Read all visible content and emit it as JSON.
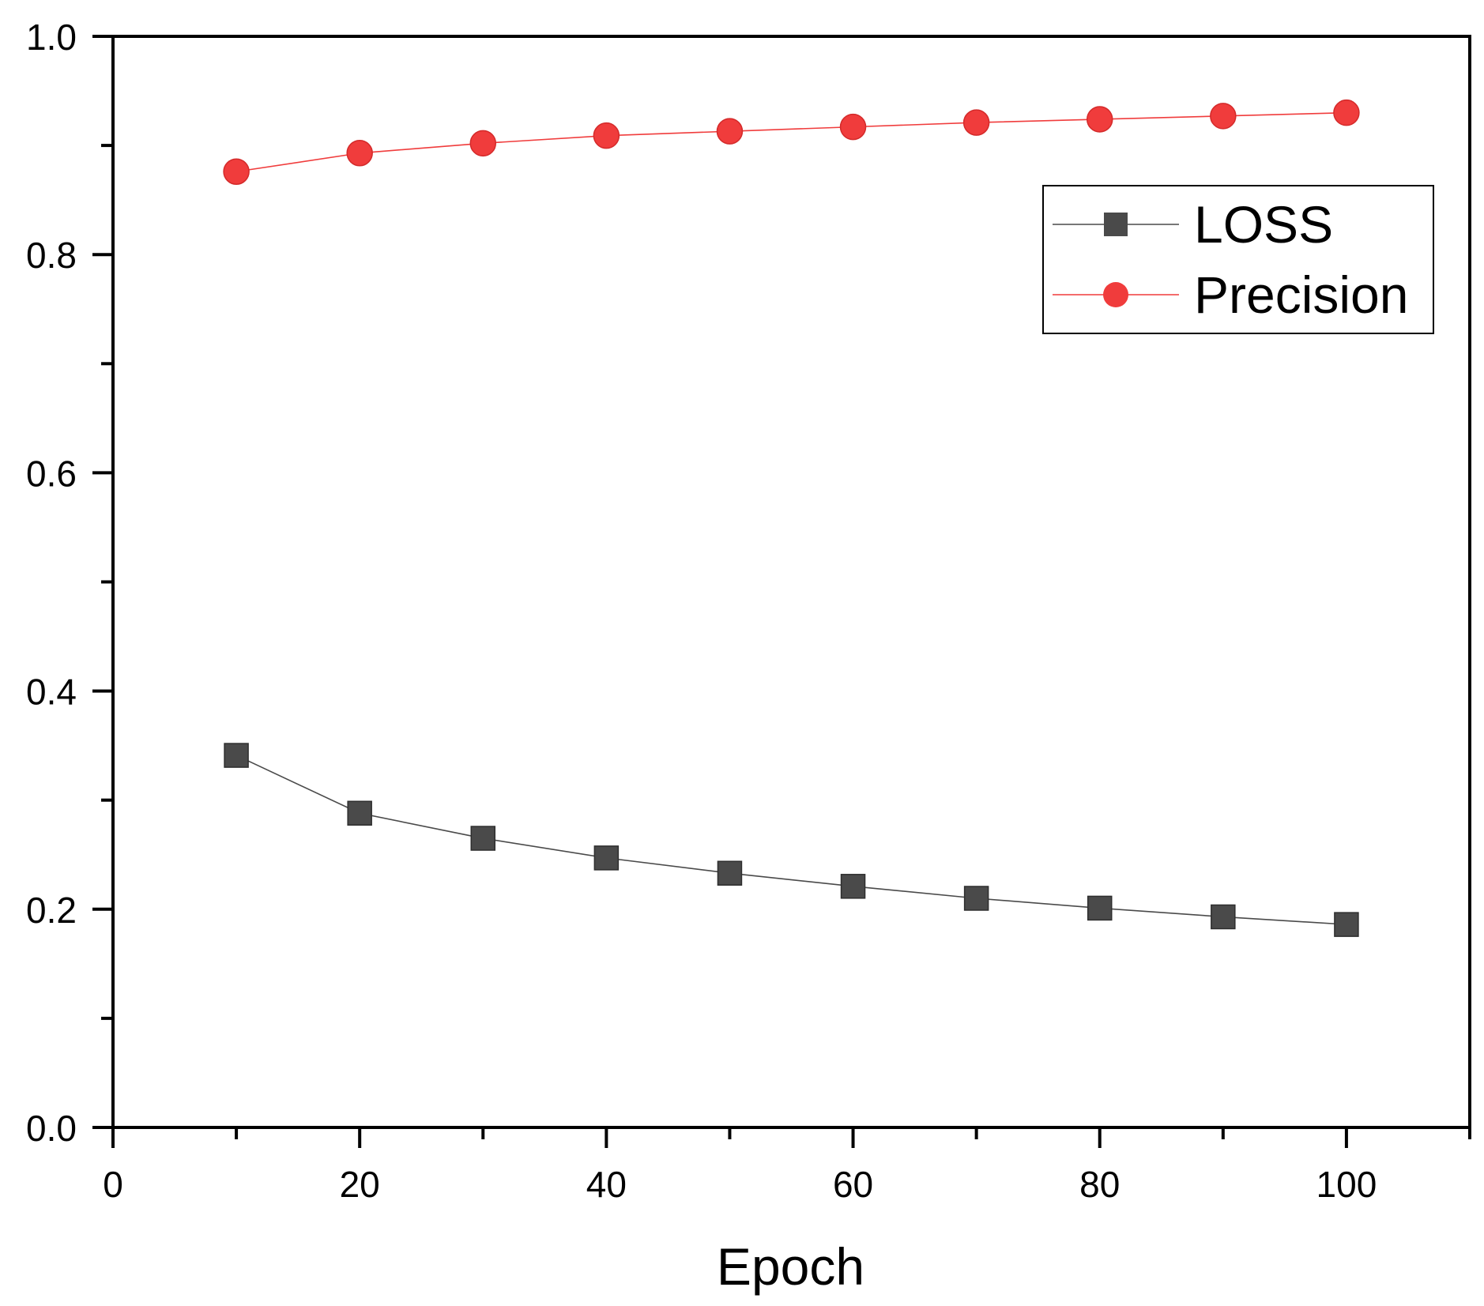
{
  "chart_data": {
    "type": "line",
    "title": "",
    "xlabel": "Epoch",
    "ylabel": "",
    "xlim": [
      0,
      110
    ],
    "ylim": [
      0.0,
      1.0
    ],
    "x_ticks": [
      0,
      20,
      40,
      60,
      80,
      100
    ],
    "x_tick_labels": [
      "0",
      "20",
      "40",
      "60",
      "80",
      "100"
    ],
    "x_minor_ticks": [
      10,
      30,
      50,
      70,
      90,
      110
    ],
    "y_ticks": [
      0.0,
      0.2,
      0.4,
      0.6,
      0.8,
      1.0
    ],
    "y_tick_labels": [
      "0.0",
      "0.2",
      "0.4",
      "0.6",
      "0.8",
      "1.0"
    ],
    "y_minor_ticks": [
      0.1,
      0.3,
      0.5,
      0.7,
      0.9
    ],
    "grid": false,
    "legend_position": "top-right",
    "x": [
      10,
      20,
      30,
      40,
      50,
      60,
      70,
      80,
      90,
      100
    ],
    "series": [
      {
        "name": "LOSS",
        "marker": "square",
        "color": "#4a4a4a",
        "values": [
          0.341,
          0.288,
          0.265,
          0.247,
          0.233,
          0.221,
          0.21,
          0.201,
          0.193,
          0.186
        ]
      },
      {
        "name": "Precision",
        "marker": "circle",
        "color": "#f03c3c",
        "values": [
          0.876,
          0.893,
          0.902,
          0.909,
          0.913,
          0.917,
          0.921,
          0.924,
          0.927,
          0.93
        ]
      }
    ]
  }
}
